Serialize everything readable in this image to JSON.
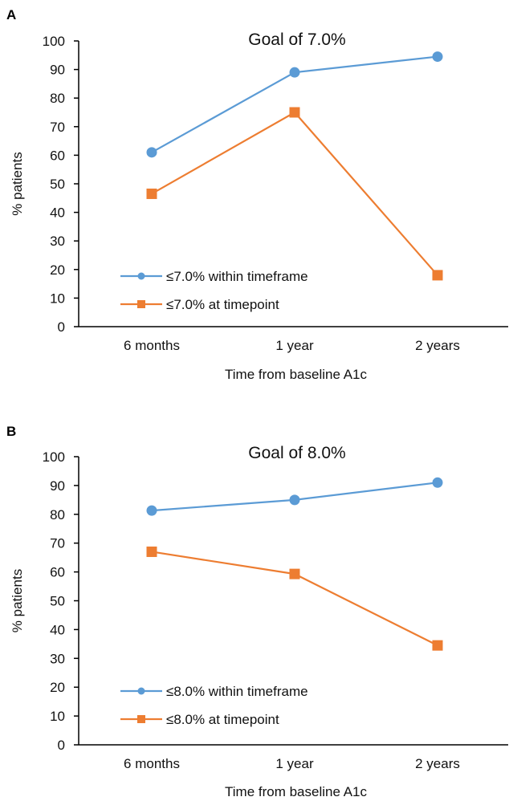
{
  "chart_data": [
    {
      "panel": "A",
      "type": "line",
      "title": "Goal of 7.0%",
      "xlabel": "Time from baseline A1c",
      "ylabel": "% patients",
      "categories": [
        "6 months",
        "1 year",
        "2 years"
      ],
      "ylim": [
        0,
        100
      ],
      "yticks": [
        "0",
        "10",
        "20",
        "30",
        "40",
        "50",
        "60",
        "70",
        "80",
        "90",
        "100"
      ],
      "grid": false,
      "legend_position": "bottom-left",
      "series": [
        {
          "name": "≤7.0% within timeframe",
          "values": [
            61,
            89,
            94.5
          ],
          "marker": "circle",
          "color": "#5b9bd5"
        },
        {
          "name": "≤7.0% at timepoint",
          "values": [
            46.5,
            75,
            18
          ],
          "marker": "square",
          "color": "#ed7d31"
        }
      ]
    },
    {
      "panel": "B",
      "type": "line",
      "title": "Goal of 8.0%",
      "xlabel": "Time from baseline A1c",
      "ylabel": "% patients",
      "categories": [
        "6 months",
        "1 year",
        "2 years"
      ],
      "ylim": [
        0,
        100
      ],
      "yticks": [
        "0",
        "10",
        "20",
        "30",
        "40",
        "50",
        "60",
        "70",
        "80",
        "90",
        "100"
      ],
      "grid": false,
      "legend_position": "bottom-left",
      "series": [
        {
          "name": "≤8.0% within timeframe",
          "values": [
            81.3,
            85,
            91
          ],
          "marker": "circle",
          "color": "#5b9bd5"
        },
        {
          "name": "≤8.0% at timepoint",
          "values": [
            67,
            59.3,
            34.5
          ],
          "marker": "square",
          "color": "#ed7d31"
        }
      ]
    }
  ]
}
